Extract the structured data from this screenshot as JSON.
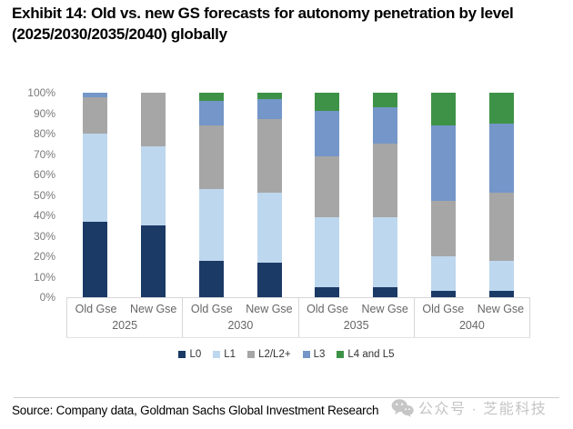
{
  "header": {
    "title": "Exhibit 14: Old vs. new GS forecasts for autonomy penetration by level (2025/2030/2035/2040) globally"
  },
  "chart_data": {
    "type": "bar",
    "stacked": true,
    "title": "Exhibit 14: Old vs. new GS forecasts for autonomy penetration by level (2025/2030/2035/2040) globally",
    "xlabel": "",
    "ylabel": "",
    "ylim": [
      0,
      100
    ],
    "gridlines": false,
    "legend_position": "bottom",
    "ytick_labels": [
      "0%",
      "10%",
      "20%",
      "30%",
      "40%",
      "50%",
      "60%",
      "70%",
      "80%",
      "90%",
      "100%"
    ],
    "series": [
      {
        "name": "L0",
        "color": "#1B3A66"
      },
      {
        "name": "L1",
        "color": "#BDD7EE"
      },
      {
        "name": "L2/L2+",
        "color": "#A6A6A6"
      },
      {
        "name": "L3",
        "color": "#7496C8"
      },
      {
        "name": "L4 and L5",
        "color": "#3E9247"
      }
    ],
    "groups": [
      {
        "year": "2025",
        "bars": [
          {
            "label": "Old Gse",
            "values": [
              37,
              43,
              18,
              2,
              0
            ]
          },
          {
            "label": "New Gse",
            "values": [
              35,
              39,
              26,
              0,
              0
            ]
          }
        ]
      },
      {
        "year": "2030",
        "bars": [
          {
            "label": "Old Gse",
            "values": [
              18,
              35,
              31,
              12,
              4
            ]
          },
          {
            "label": "New Gse",
            "values": [
              17,
              34,
              36,
              10,
              3
            ]
          }
        ]
      },
      {
        "year": "2035",
        "bars": [
          {
            "label": "Old Gse",
            "values": [
              5,
              34,
              30,
              22,
              9
            ]
          },
          {
            "label": "New Gse",
            "values": [
              5,
              34,
              36,
              18,
              7
            ]
          }
        ]
      },
      {
        "year": "2040",
        "bars": [
          {
            "label": "Old Gse",
            "values": [
              3,
              17,
              27,
              37,
              16
            ]
          },
          {
            "label": "New Gse",
            "values": [
              3,
              15,
              33,
              34,
              15
            ]
          }
        ]
      }
    ]
  },
  "footer": {
    "source": "Source: Company data, Goldman Sachs Global Investment Research",
    "watermark": "公众号 · 芝能科技",
    "watermark_icon": "wechat-icon"
  }
}
